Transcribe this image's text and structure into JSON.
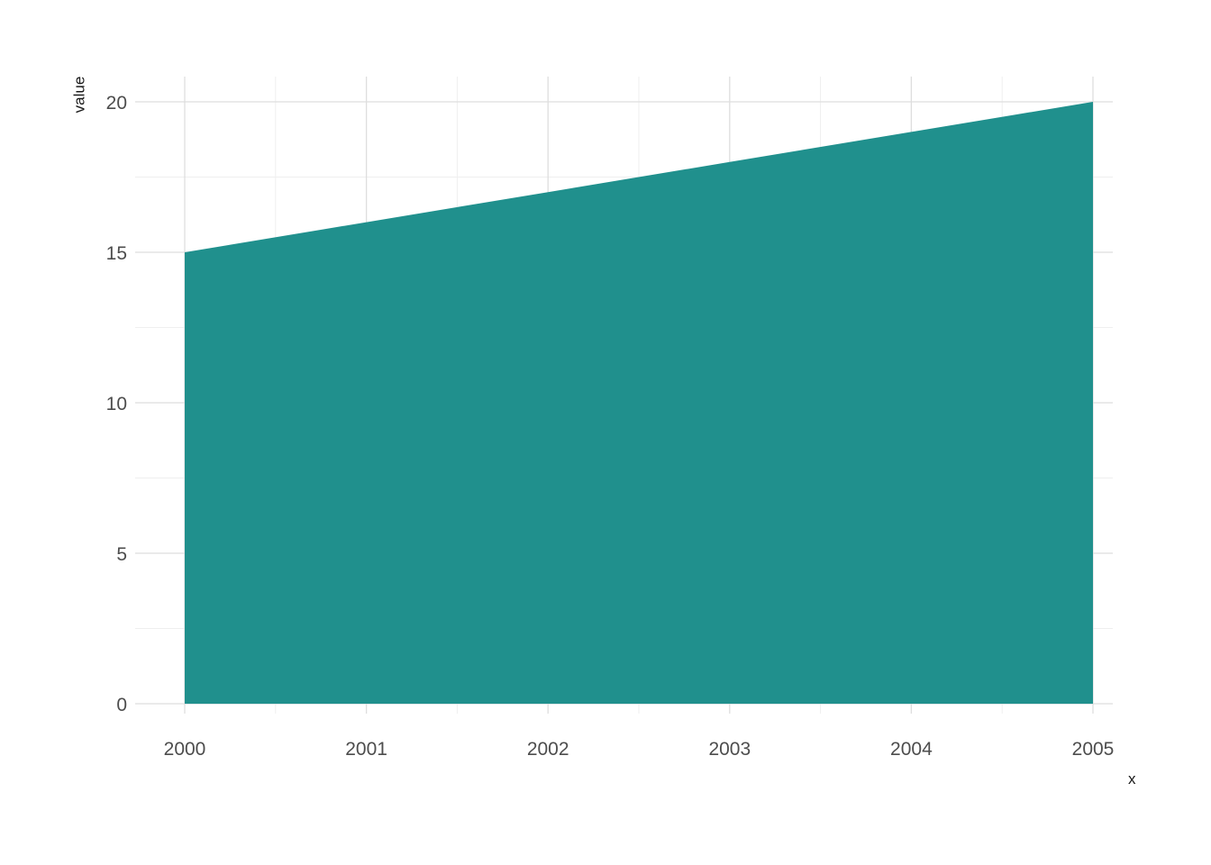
{
  "chart_data": {
    "type": "area",
    "title": "",
    "xlabel": "x",
    "ylabel": "value",
    "x": [
      2000,
      2001,
      2002,
      2003,
      2004,
      2005
    ],
    "series": [
      {
        "name": "value",
        "values": [
          15,
          16,
          17,
          18,
          19,
          20
        ]
      }
    ],
    "xlim": [
      2000,
      2005
    ],
    "ylim": [
      0,
      20
    ],
    "x_ticks": [
      2000,
      2001,
      2002,
      2003,
      2004,
      2005
    ],
    "x_tick_labels": [
      "2000",
      "2001",
      "2002",
      "2003",
      "2004",
      "2005"
    ],
    "y_ticks": [
      0,
      5,
      10,
      15,
      20
    ],
    "y_tick_labels": [
      "0",
      "5",
      "10",
      "15",
      "20"
    ],
    "x_minor": [
      2000.5,
      2001.5,
      2002.5,
      2003.5,
      2004.5
    ],
    "y_minor": [
      2.5,
      7.5,
      12.5,
      17.5
    ],
    "grid": true,
    "legend": "none",
    "colors": {
      "area_fill": "#20908D",
      "grid_major": "#DEDEDE",
      "grid_minor": "#EFEFEF",
      "tick_label": "#4D4D4D",
      "axis_label": "#1A1A1A",
      "background": "#FFFFFF"
    }
  }
}
